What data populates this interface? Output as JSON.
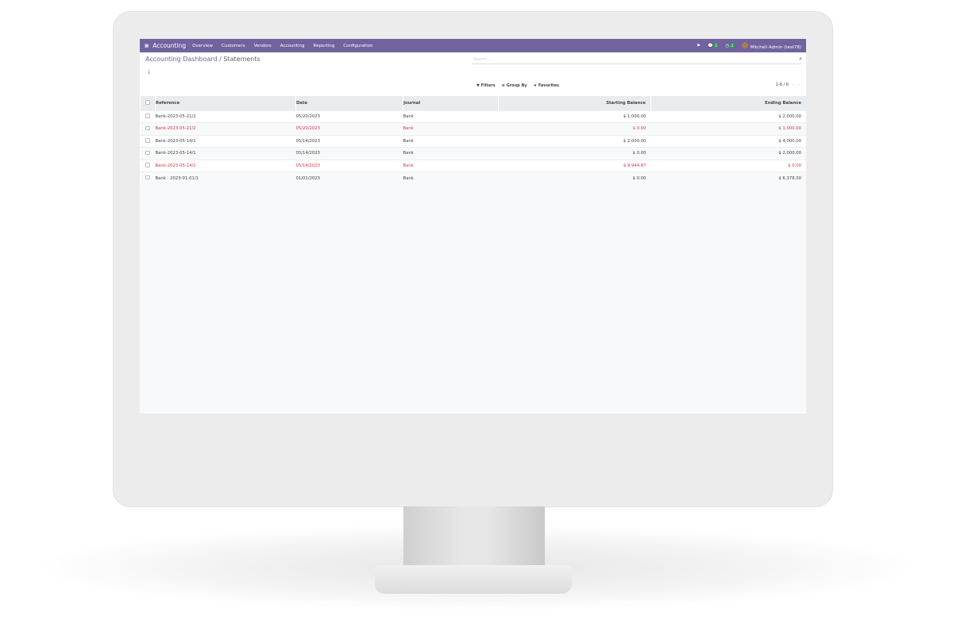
{
  "nav": {
    "app": "Accounting",
    "menu": [
      "Overview",
      "Customers",
      "Vendors",
      "Accounting",
      "Reporting",
      "Configuration"
    ],
    "messages_count": "5",
    "activities_count": "2",
    "user": "Mitchell Admin (test78)"
  },
  "breadcrumb": {
    "parent": "Accounting Dashboard",
    "separator": " / ",
    "current": "Statements"
  },
  "search": {
    "placeholder": "Search..."
  },
  "filters": {
    "filters": "Filters",
    "group_by": "Group By",
    "favorites": "Favorites"
  },
  "pager": {
    "value": "1-6 / 6"
  },
  "colors": {
    "brand": "#71639e",
    "danger": "#dc3545"
  },
  "table": {
    "headers": [
      "Reference",
      "Date",
      "Journal",
      "Starting Balance",
      "Ending Balance"
    ],
    "rows": [
      {
        "ref": "Bank-2023-05-21/2",
        "date": "05/20/2023",
        "journal": "Bank",
        "start": "$ 1,000.00",
        "end": "$ 2,000.00",
        "highlight": false
      },
      {
        "ref": "Bank-2023-05-21/2",
        "date": "05/20/2023",
        "journal": "Bank",
        "start": "$ 0.00",
        "end": "$ 1,000.00",
        "highlight": true
      },
      {
        "ref": "Bank-2023-05-14/1",
        "date": "05/14/2023",
        "journal": "Bank",
        "start": "$ 2,000.00",
        "end": "$ 4,000.00",
        "highlight": false
      },
      {
        "ref": "Bank-2023-05-14/1",
        "date": "05/14/2023",
        "journal": "Bank",
        "start": "$ 0.00",
        "end": "$ 2,000.00",
        "highlight": false
      },
      {
        "ref": "Bank-2023-05-14/1",
        "date": "05/14/2023",
        "journal": "Bank",
        "start": "$ 9,944.87",
        "end": "$ 0.00",
        "highlight": true
      },
      {
        "ref": "Bank - 2023-01-01/1",
        "date": "01/01/2023",
        "journal": "Bank",
        "start": "$ 0.00",
        "end": "$ 6,378.00",
        "highlight": false
      }
    ]
  }
}
